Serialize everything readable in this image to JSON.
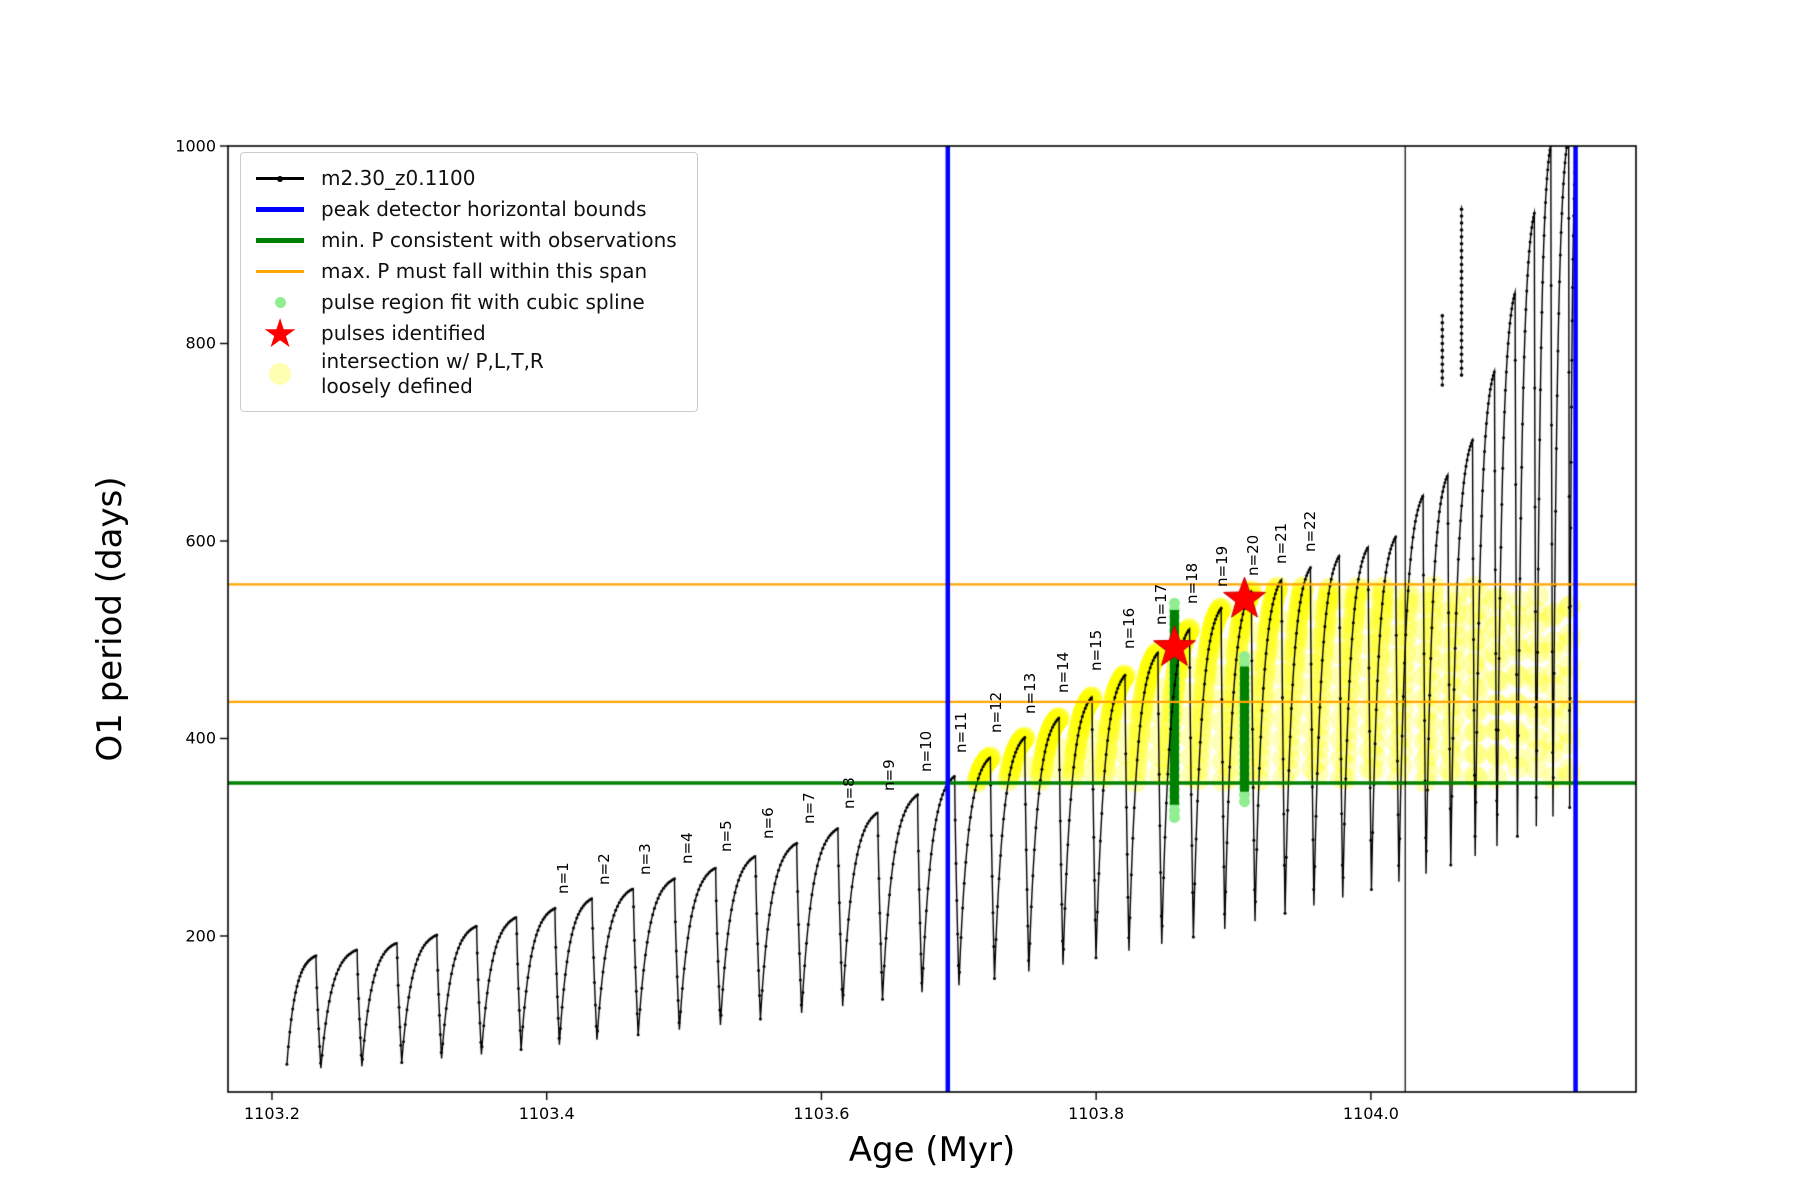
{
  "figure": {
    "background": "#ffffff"
  },
  "axes": {
    "xlabel": "Age (Myr)",
    "ylabel": "O1 period (days)",
    "xlim": [
      1103.168,
      1104.193
    ],
    "ylim": [
      42,
      1000
    ],
    "xticks": {
      "values": [
        1103.2,
        1103.4,
        1103.6,
        1103.8,
        1104.0
      ],
      "labels": [
        "1103.2",
        "1103.4",
        "1103.6",
        "1103.8",
        "1104.0"
      ]
    },
    "yticks": {
      "values": [
        200,
        400,
        600,
        800,
        1000
      ],
      "labels": [
        "200",
        "400",
        "600",
        "800",
        "1000"
      ]
    }
  },
  "legend": {
    "items": [
      {
        "label": "m2.30_z0.1100",
        "marker": "line-dot",
        "color": "#000000"
      },
      {
        "label": "peak detector horizontal bounds",
        "marker": "thick-line",
        "color": "#0000ff"
      },
      {
        "label": "min. P consistent with observations",
        "marker": "thick-line",
        "color": "#008000"
      },
      {
        "label": "max. P must fall within this span",
        "marker": "line",
        "color": "#ffa500"
      },
      {
        "label": "pulse region fit with cubic spline",
        "marker": "dot-small",
        "color": "#90ee90"
      },
      {
        "label": "pulses identified",
        "marker": "star",
        "color": "#ff0000"
      },
      {
        "label": "intersection w/ P,L,T,R\nloosely defined",
        "marker": "dot-large",
        "color": "#ffff00"
      }
    ]
  },
  "chart_data": {
    "type": "line",
    "title": "",
    "xlabel": "Age (Myr)",
    "ylabel": "O1 period (days)",
    "series_name": "m2.30_z0.1100",
    "colors": {
      "curve": "#000000",
      "blue_bounds": "#0000ff",
      "green_min": "#008000",
      "orange_span": "#ffa500",
      "spline_dots": "#90ee90",
      "star": "#ff0000",
      "yellow": "#ffff00"
    },
    "pulses": [
      [
        1103.232,
        180,
        70
      ],
      [
        1103.262,
        186,
        66
      ],
      [
        1103.291,
        193,
        68
      ],
      [
        1103.32,
        201,
        72
      ],
      [
        1103.349,
        210,
        76
      ],
      [
        1103.378,
        219,
        80
      ],
      [
        1103.406,
        228,
        85
      ],
      [
        1103.433,
        238,
        90
      ],
      [
        1103.463,
        248,
        95
      ],
      [
        1103.493,
        258,
        100
      ],
      [
        1103.523,
        269,
        105
      ],
      [
        1103.552,
        281,
        110
      ],
      [
        1103.582,
        294,
        116
      ],
      [
        1103.612,
        309,
        122
      ],
      [
        1103.641,
        325,
        129
      ],
      [
        1103.67,
        343,
        136
      ],
      [
        1103.697,
        362,
        143
      ],
      [
        1103.723,
        381,
        150
      ],
      [
        1103.748,
        401,
        157
      ],
      [
        1103.773,
        421,
        164
      ],
      [
        1103.797,
        442,
        171
      ],
      [
        1103.821,
        464,
        178
      ],
      [
        1103.845,
        487,
        185
      ],
      [
        1103.868,
        511,
        192
      ],
      [
        1103.891,
        532,
        199
      ],
      [
        1103.913,
        549,
        207
      ],
      [
        1103.935,
        561,
        215
      ],
      [
        1103.956,
        573,
        223
      ],
      [
        1103.977,
        585,
        231
      ],
      [
        1103.998,
        594,
        239
      ],
      [
        1104.018,
        604,
        247
      ],
      [
        1104.038,
        646,
        255
      ],
      [
        1104.056,
        667,
        263
      ],
      [
        1104.074,
        702,
        272
      ],
      [
        1104.09,
        772,
        281
      ],
      [
        1104.105,
        852,
        291
      ],
      [
        1104.119,
        932,
        301
      ],
      [
        1104.131,
        1002,
        311
      ],
      [
        1104.144,
        1012,
        321
      ],
      [
        1104.15,
        1015,
        330
      ]
    ],
    "pulse_labels": {
      "prefix": "n=",
      "start_index": 7,
      "count": 22
    },
    "vlines_blue": [
      1103.692,
      1104.149
    ],
    "vline_black": 1104.025,
    "hline_green": 355,
    "hlines_orange": [
      437,
      556
    ],
    "stars": [
      [
        1103.857,
        492
      ],
      [
        1103.908,
        541
      ]
    ],
    "green_bars": [
      [
        1103.857,
        333,
        530
      ],
      [
        1103.908,
        346,
        473
      ]
    ],
    "spline_dot_columns": [
      [
        1103.857,
        320,
        540
      ],
      [
        1103.908,
        336,
        483
      ]
    ],
    "spikes": [
      [
        1104.052,
        758,
        830
      ],
      [
        1104.066,
        768,
        940
      ]
    ],
    "yellow_band": {
      "xmin": 1103.702,
      "xmax": 1104.152,
      "ymin": 356,
      "ymax": 554
    }
  }
}
